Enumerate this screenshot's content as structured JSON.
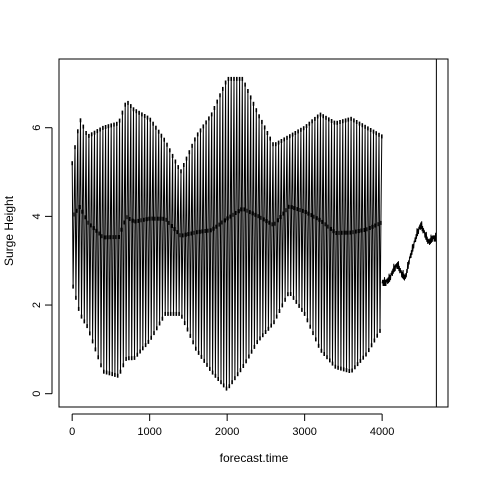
{
  "chart_data": {
    "type": "line",
    "xlabel": "forecast.time",
    "ylabel": "Surge Height",
    "xlim": [
      -170,
      4850
    ],
    "ylim": [
      -0.3,
      7.55
    ],
    "xticks": [
      0,
      1000,
      2000,
      3000,
      4000
    ],
    "yticks": [
      0,
      2,
      4,
      6
    ],
    "vertical_lines": [
      {
        "x": 4700
      }
    ],
    "observed_period": [
      0,
      4000
    ],
    "forecast_period": [
      4000,
      4700
    ],
    "series": [
      {
        "name": "",
        "style": "lines+points",
        "description_envelope_upper": {
          "x": [
            0,
            100,
            200,
            400,
            600,
            700,
            800,
            1000,
            1200,
            1400,
            1600,
            1800,
            2000,
            2200,
            2400,
            2600,
            2800,
            3000,
            3200,
            3400,
            3600,
            3800,
            4000
          ],
          "y": [
            5.2,
            6.2,
            5.8,
            6.0,
            6.1,
            6.6,
            6.4,
            6.2,
            5.7,
            5.0,
            5.8,
            6.3,
            7.1,
            7.1,
            6.3,
            5.6,
            5.8,
            6.0,
            6.3,
            6.1,
            6.2,
            6.0,
            5.8
          ]
        },
        "description_envelope_lower": {
          "x": [
            0,
            100,
            200,
            400,
            600,
            700,
            800,
            1000,
            1200,
            1400,
            1600,
            1800,
            2000,
            2200,
            2400,
            2600,
            2800,
            3000,
            3200,
            3400,
            3600,
            3800,
            4000
          ],
          "y": [
            2.5,
            1.8,
            1.5,
            0.5,
            0.4,
            0.8,
            0.8,
            1.2,
            1.8,
            1.8,
            1.0,
            0.5,
            0.1,
            0.6,
            1.2,
            1.6,
            2.3,
            1.8,
            1.0,
            0.6,
            0.5,
            0.9,
            1.5
          ]
        },
        "forecast": {
          "x": [
            4000,
            4050,
            4100,
            4150,
            4200,
            4250,
            4300,
            4350,
            4400,
            4450,
            4500,
            4550,
            4600,
            4650,
            4700
          ],
          "y": [
            2.5,
            2.5,
            2.6,
            2.8,
            2.9,
            2.7,
            2.6,
            3.0,
            3.3,
            3.6,
            3.8,
            3.6,
            3.4,
            3.5,
            3.5
          ]
        }
      }
    ]
  }
}
